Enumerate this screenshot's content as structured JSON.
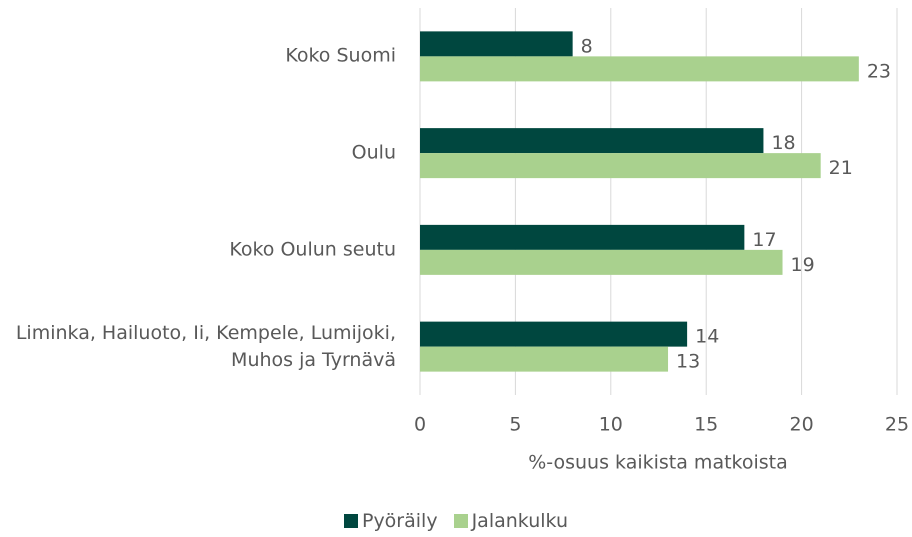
{
  "chart_data": {
    "type": "barh",
    "categories": [
      "Koko Suomi",
      "Oulu",
      "Koko Oulun seutu",
      "Liminka, Hailuoto, Ii, Kempele, Lumijoki, Muhos ja Tyrnävä"
    ],
    "series": [
      {
        "name": "Pyöräily",
        "color": "#00473f",
        "values": [
          8,
          18,
          17,
          14
        ]
      },
      {
        "name": "Jalankulku",
        "color": "#a9d18e",
        "values": [
          23,
          21,
          19,
          13
        ]
      }
    ],
    "xlabel": "%-osuus kaikista matkoista",
    "xlim": [
      0,
      25
    ],
    "xticks": [
      0,
      5,
      10,
      15,
      20,
      25
    ],
    "grid": true,
    "legend": "bottom"
  }
}
